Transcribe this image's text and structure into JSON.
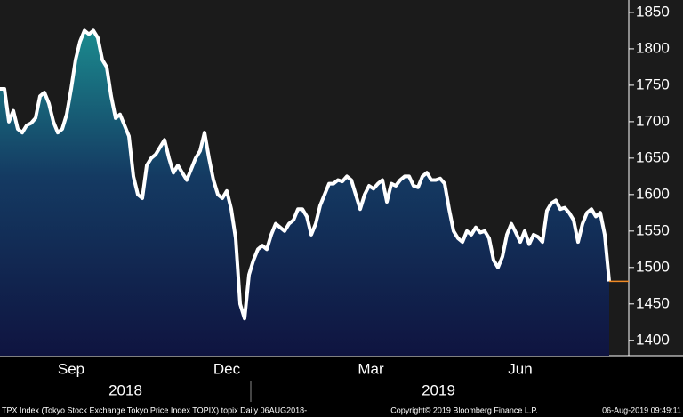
{
  "chart_data": {
    "type": "line",
    "values": [
      1745,
      1745,
      1700,
      1715,
      1690,
      1685,
      1695,
      1698,
      1705,
      1735,
      1740,
      1725,
      1700,
      1685,
      1690,
      1710,
      1745,
      1785,
      1810,
      1825,
      1820,
      1825,
      1815,
      1785,
      1775,
      1735,
      1705,
      1710,
      1695,
      1680,
      1625,
      1600,
      1595,
      1640,
      1650,
      1655,
      1665,
      1675,
      1650,
      1630,
      1640,
      1630,
      1620,
      1635,
      1650,
      1660,
      1685,
      1650,
      1620,
      1600,
      1595,
      1605,
      1580,
      1540,
      1450,
      1430,
      1490,
      1510,
      1525,
      1530,
      1525,
      1545,
      1560,
      1555,
      1550,
      1560,
      1565,
      1580,
      1580,
      1570,
      1545,
      1560,
      1585,
      1600,
      1615,
      1615,
      1620,
      1618,
      1625,
      1620,
      1600,
      1580,
      1600,
      1612,
      1608,
      1615,
      1620,
      1590,
      1615,
      1612,
      1620,
      1625,
      1625,
      1612,
      1610,
      1625,
      1630,
      1620,
      1620,
      1622,
      1615,
      1580,
      1550,
      1540,
      1535,
      1550,
      1545,
      1555,
      1548,
      1550,
      1540,
      1510,
      1500,
      1515,
      1545,
      1560,
      1548,
      1535,
      1550,
      1532,
      1545,
      1542,
      1535,
      1578,
      1588,
      1592,
      1580,
      1582,
      1575,
      1565,
      1535,
      1560,
      1575,
      1580,
      1570,
      1575,
      1545,
      1481
    ],
    "color": "#ffffff",
    "last_price_color": "#f08a24",
    "xlim": [
      0,
      137
    ],
    "xticks": [
      {
        "value": 16,
        "label": "Sep"
      },
      {
        "value": 51,
        "label": "Dec"
      },
      {
        "value": 83.4,
        "label": "Mar"
      },
      {
        "value": 117,
        "label": "Jun"
      }
    ],
    "years": [
      "2018",
      "2019"
    ],
    "ylim": [
      1379,
      1867
    ],
    "yticks": [
      1400,
      1450,
      1500,
      1550,
      1600,
      1650,
      1700,
      1750,
      1800,
      1850
    ],
    "footer": {
      "left": "TPX Index (Tokyo Stock Exchange Tokyo Price Index TOPIX) topix  Daily 06AUG2018-",
      "center": "Copyright© 2019 Bloomberg Finance L.P.",
      "right": "06-Aug-2019 09:49:11"
    }
  }
}
